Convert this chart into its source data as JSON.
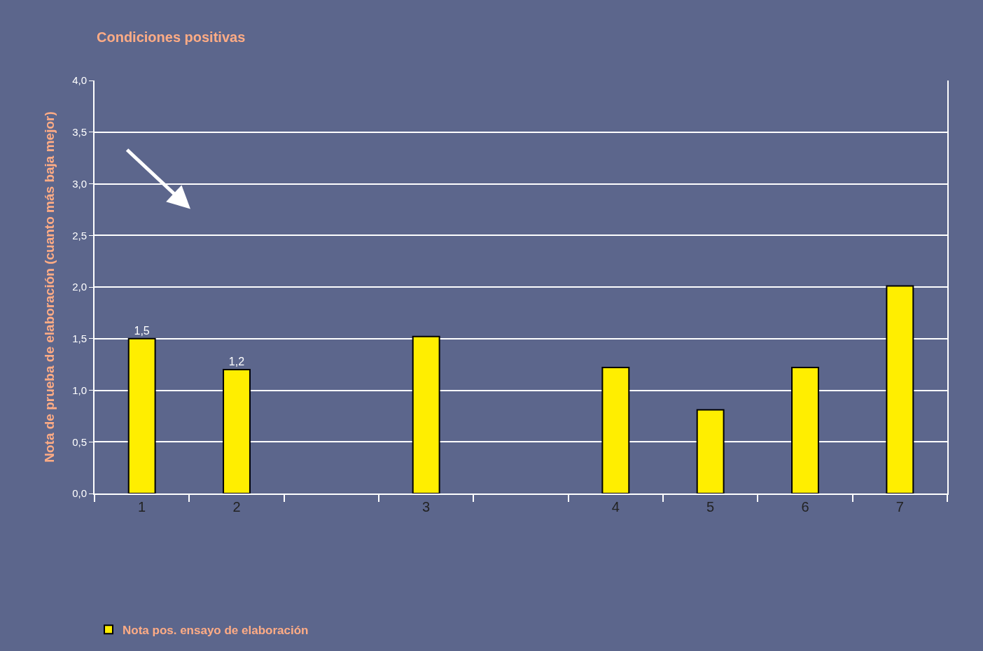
{
  "chart_data": {
    "type": "bar",
    "title": "Condiciones positivas",
    "ylabel": "Nota de prueba de elaboración (cuanto más baja mejor)",
    "categories": [
      "1",
      "2",
      null,
      "3",
      null,
      "4",
      "5",
      "6",
      "7"
    ],
    "series": [
      {
        "name": "Nota pos. ensayo de elaboración",
        "color": "#ffee00",
        "values": [
          1.5,
          1.2,
          null,
          1.52,
          null,
          1.22,
          0.81,
          1.22,
          2.01
        ],
        "value_labels": [
          "1,5",
          "1,2",
          null,
          null,
          null,
          null,
          null,
          null,
          null
        ]
      }
    ],
    "ylim": [
      0,
      4
    ],
    "yticks": [
      {
        "value": 0,
        "label": "0,0"
      },
      {
        "value": 0.5,
        "label": "0,5"
      },
      {
        "value": 1,
        "label": "1,0"
      },
      {
        "value": 1.5,
        "label": "1,5"
      },
      {
        "value": 2,
        "label": "2,0"
      },
      {
        "value": 2.5,
        "label": "2,5"
      },
      {
        "value": 3,
        "label": "3,0"
      },
      {
        "value": 3.5,
        "label": "3,5"
      },
      {
        "value": 4,
        "label": "4,0"
      }
    ],
    "grid": "y",
    "legend": "bottom left"
  }
}
